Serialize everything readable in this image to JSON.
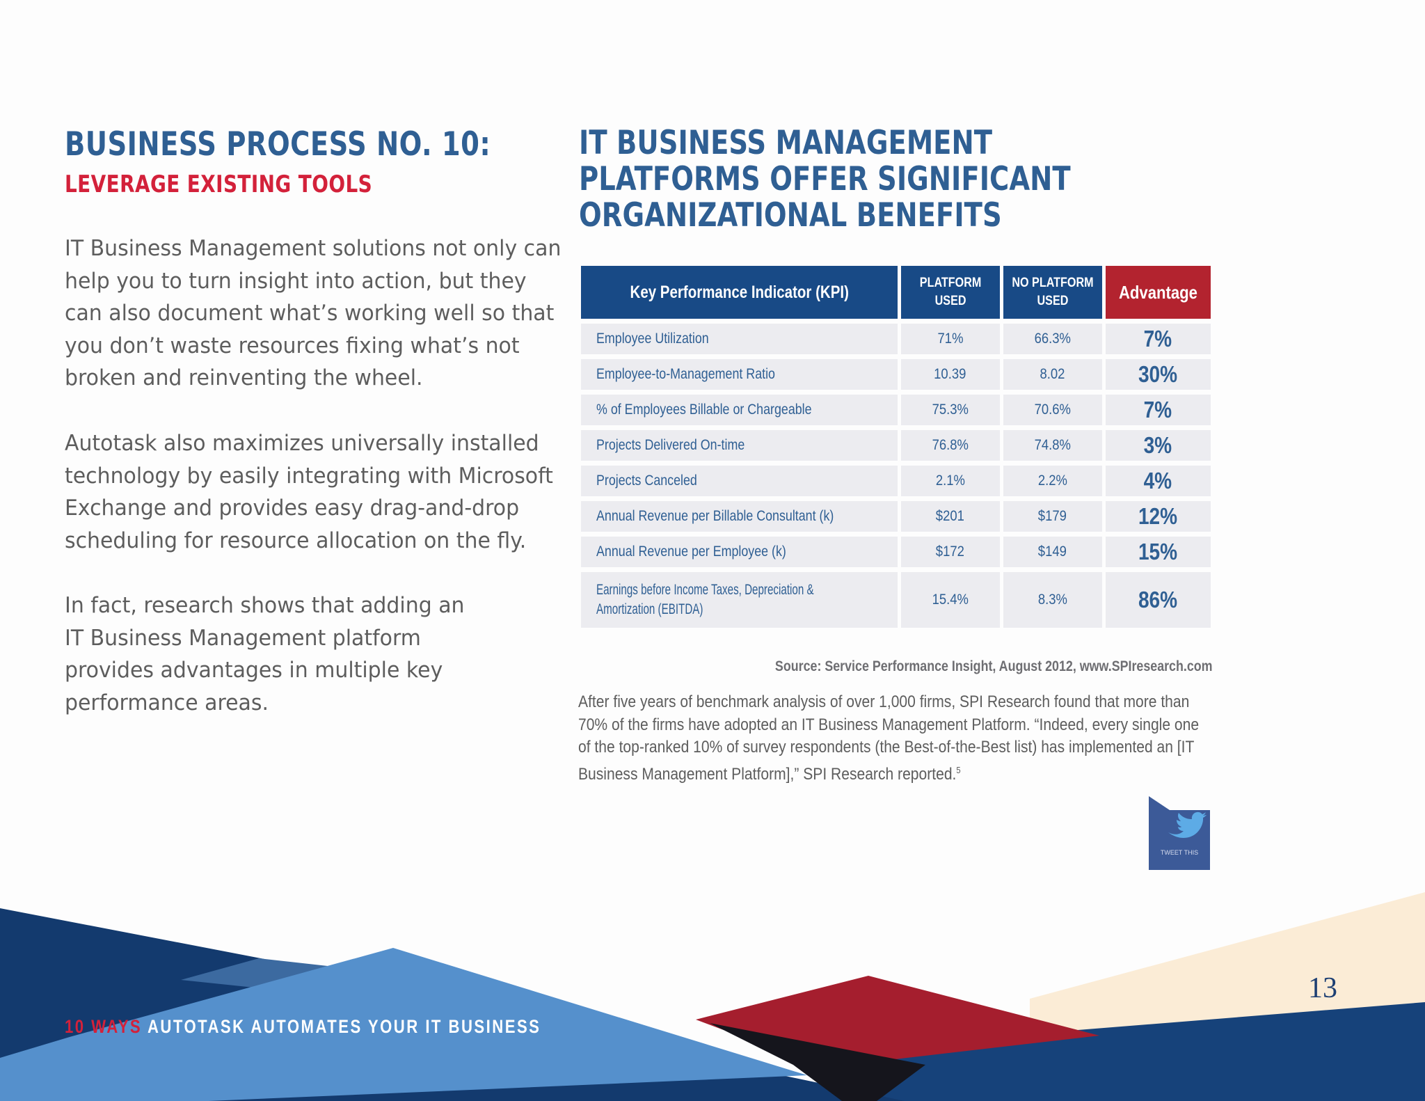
{
  "left": {
    "title": "BUSINESS PROCESS NO. 10:",
    "subtitle": "LEVERAGE EXISTING TOOLS",
    "paragraphs": [
      "IT Business Management solutions not only can help you to turn insight into action, but they can also document what’s working well so that you don’t waste resources fixing what’s not broken and reinventing the wheel.",
      "Autotask also maximizes universally installed technology by easily integrating with Microsoft Exchange and provides easy drag-and-drop scheduling for resource allocation on the fly.",
      "In fact, research shows that adding an IT Business Management platform provides advantages in multiple key performance areas."
    ]
  },
  "right": {
    "title_lines": [
      "IT BUSINESS MANAGEMENT",
      "PLATFORMS OFFER SIGNIFICANT",
      "ORGANIZATIONAL BENEFITS"
    ]
  },
  "table": {
    "headers": {
      "kpi": "Key Performance Indicator (KPI)",
      "platform_line1": "PLATFORM",
      "platform_line2": "USED",
      "noplatform_line1": "NO PLATFORM",
      "noplatform_line2": "USED",
      "advantage": "Advantage"
    },
    "rows": [
      {
        "kpi": "Employee Utilization",
        "platform": "71%",
        "no_platform": "66.3%",
        "advantage": "7%"
      },
      {
        "kpi": "Employee-to-Management Ratio",
        "platform": "10.39",
        "no_platform": "8.02",
        "advantage": "30%"
      },
      {
        "kpi": "% of Employees Billable or Chargeable",
        "platform": "75.3%",
        "no_platform": "70.6%",
        "advantage": "7%"
      },
      {
        "kpi": "Projects Delivered On-time",
        "platform": "76.8%",
        "no_platform": "74.8%",
        "advantage": "3%"
      },
      {
        "kpi": "Projects Canceled",
        "platform": "2.1%",
        "no_platform": "2.2%",
        "advantage": "4%"
      },
      {
        "kpi": "Annual Revenue per Billable Consultant (k)",
        "platform": "$201",
        "no_platform": "$179",
        "advantage": "12%"
      },
      {
        "kpi": "Annual Revenue per Employee (k)",
        "platform": "$172",
        "no_platform": "$149",
        "advantage": "15%"
      },
      {
        "kpi_line1": "Earnings before Income Taxes, Depreciation &",
        "kpi_line2": "Amortization (EBITDA)",
        "platform": "15.4%",
        "no_platform": "8.3%",
        "advantage": "86%"
      }
    ]
  },
  "source": "Source: Service Performance Insight, August 2012, www.SPIresearch.com",
  "after_text": "After five years of benchmark analysis of over 1,000 firms, SPI Research found that more than 70% of the firms have adopted an IT Business Management Platform. “Indeed, every single one of the top-ranked 10% of survey respondents (the Best-of-the-Best list) has implemented an [IT Business Management Platform],” SPI Research reported.",
  "after_footnote": "5",
  "tweet": {
    "label": "TWEET THIS",
    "icon": "twitter-bird-icon"
  },
  "footer": {
    "highlight": "10 WAYS",
    "text": "AUTOTASK AUTOMATES YOUR IT BUSINESS"
  },
  "page_number": "13",
  "colors": {
    "heading_blue": "#2f5f93",
    "accent_red": "#d3213a",
    "header_navy": "#184a86",
    "advantage_red": "#b3232f",
    "cell_gray": "#ececf0"
  }
}
